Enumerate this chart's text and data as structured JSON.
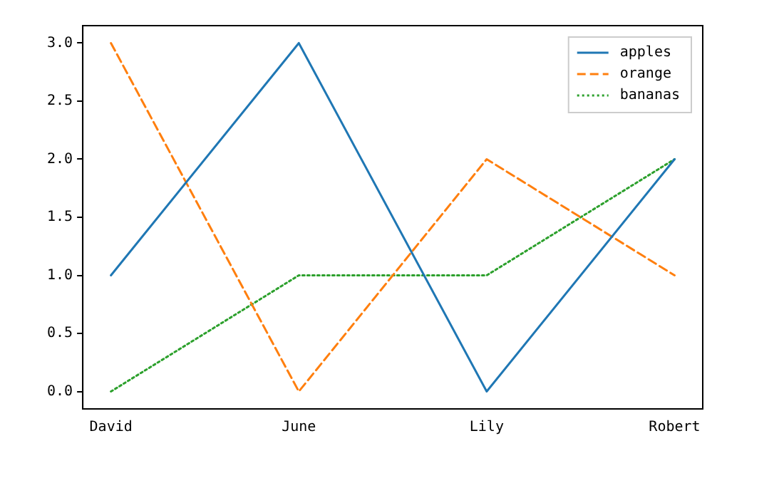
{
  "chart_data": {
    "type": "line",
    "categories": [
      "David",
      "June",
      "Lily",
      "Robert"
    ],
    "series": [
      {
        "name": "apples",
        "color": "#1f77b4",
        "line_style": "solid",
        "values": [
          1,
          3,
          0,
          2
        ]
      },
      {
        "name": "orange",
        "color": "#ff7f0e",
        "line_style": "dashed",
        "values": [
          3,
          0,
          2,
          1
        ]
      },
      {
        "name": "bananas",
        "color": "#2ca02c",
        "line_style": "dotted",
        "values": [
          0,
          1,
          1,
          2
        ]
      }
    ],
    "ylim": [
      -0.15,
      3.15
    ],
    "yticks": [
      {
        "value": 0,
        "label": "0.0"
      },
      {
        "value": 0.5,
        "label": "0.5"
      },
      {
        "value": 1,
        "label": "1.0"
      },
      {
        "value": 1.5,
        "label": "1.5"
      },
      {
        "value": 2,
        "label": "2.0"
      },
      {
        "value": 2.5,
        "label": "2.5"
      },
      {
        "value": 3,
        "label": "3.0"
      }
    ],
    "grid": false,
    "legend": "top right",
    "marker": "none"
  }
}
